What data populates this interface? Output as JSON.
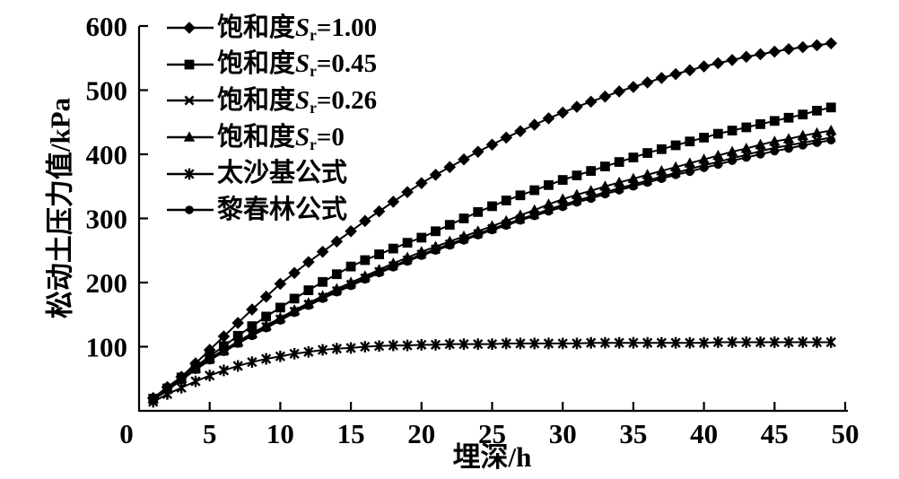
{
  "figure": {
    "background_color": "#ffffff",
    "ink_color": "#000000"
  },
  "chart_data": {
    "type": "line",
    "title": "",
    "xlabel": "埋深/h",
    "ylabel": "松动土压力值/kPa",
    "xlim": [
      0,
      50
    ],
    "ylim": [
      0,
      600
    ],
    "x_ticks": [
      0,
      5,
      10,
      15,
      20,
      25,
      30,
      35,
      40,
      45,
      50
    ],
    "y_ticks": [
      100,
      200,
      300,
      400,
      500,
      600
    ],
    "grid": false,
    "legend_position": "top-left-inside",
    "x": [
      1,
      2,
      3,
      4,
      5,
      6,
      7,
      8,
      9,
      10,
      11,
      12,
      13,
      14,
      15,
      16,
      17,
      18,
      19,
      20,
      21,
      22,
      23,
      24,
      25,
      26,
      27,
      28,
      29,
      30,
      31,
      32,
      33,
      34,
      35,
      36,
      37,
      38,
      39,
      40,
      41,
      42,
      43,
      44,
      45,
      46,
      47,
      48,
      49
    ],
    "series": [
      {
        "name": "饱和度Sr=1.00",
        "marker": "diamond",
        "label": {
          "prefix": "饱和度",
          "sym": "S",
          "sub": "r",
          "suffix": "=1.00"
        },
        "values": [
          20,
          37,
          53,
          74,
          95,
          116,
          137,
          158,
          178,
          198,
          215,
          232,
          248,
          264,
          280,
          296,
          311,
          326,
          341,
          355,
          368,
          380,
          392,
          404,
          415,
          426,
          436,
          446,
          456,
          465,
          474,
          482,
          490,
          498,
          505,
          512,
          519,
          525,
          531,
          537,
          542,
          547,
          552,
          556,
          560,
          564,
          567,
          570,
          573
        ]
      },
      {
        "name": "饱和度Sr=0.45",
        "marker": "square",
        "label": {
          "prefix": "饱和度",
          "sym": "S",
          "sub": "r",
          "suffix": "=0.45"
        },
        "values": [
          19,
          35,
          52,
          69,
          85,
          101,
          117,
          132,
          147,
          161,
          175,
          188,
          201,
          213,
          225,
          235,
          244,
          253,
          262,
          270,
          280,
          290,
          300,
          310,
          319,
          328,
          336,
          344,
          352,
          360,
          367,
          374,
          381,
          388,
          395,
          402,
          408,
          414,
          420,
          426,
          432,
          437,
          442,
          447,
          452,
          457,
          462,
          468,
          473
        ]
      },
      {
        "name": "饱和度Sr=0.26",
        "marker": "cross",
        "label": {
          "prefix": "饱和度",
          "sym": "S",
          "sub": "r",
          "suffix": "=0.26"
        },
        "values": [
          18,
          33,
          49,
          65,
          80,
          93,
          106,
          119,
          131,
          143,
          155,
          166,
          177,
          187,
          197,
          207,
          217,
          226,
          235,
          244,
          252,
          260,
          268,
          276,
          284,
          291,
          299,
          306,
          314,
          321,
          328,
          334,
          341,
          347,
          353,
          359,
          365,
          371,
          377,
          383,
          388,
          394,
          399,
          405,
          410,
          414,
          418,
          422,
          426
        ]
      },
      {
        "name": "饱和度Sr=0",
        "marker": "triangle",
        "label": {
          "prefix": "饱和度",
          "sym": "S",
          "sub": "r",
          "suffix": "=0"
        },
        "values": [
          18,
          34,
          50,
          66,
          82,
          95,
          108,
          121,
          133,
          145,
          157,
          168,
          179,
          190,
          200,
          210,
          220,
          230,
          239,
          248,
          256,
          264,
          272,
          280,
          288,
          296,
          305,
          313,
          322,
          330,
          337,
          343,
          350,
          356,
          362,
          368,
          374,
          380,
          386,
          392,
          398,
          404,
          409,
          415,
          420,
          424,
          429,
          433,
          437
        ]
      },
      {
        "name": "太沙基公式",
        "marker": "asterisk",
        "label": {
          "prefix": "太沙基公式",
          "sym": "",
          "sub": "",
          "suffix": ""
        },
        "values": [
          14,
          26,
          36,
          46,
          55,
          63,
          70,
          76,
          81,
          85,
          89,
          92,
          95,
          97,
          98,
          100,
          101,
          102,
          102,
          103,
          103,
          104,
          104,
          104,
          104,
          105,
          105,
          105,
          105,
          105,
          105,
          106,
          106,
          106,
          106,
          106,
          106,
          106,
          106,
          106,
          107,
          107,
          107,
          107,
          107,
          107,
          107,
          107,
          107
        ]
      },
      {
        "name": "黎春林公式",
        "marker": "circle",
        "label": {
          "prefix": "黎春林公式",
          "sym": "",
          "sub": "",
          "suffix": ""
        },
        "values": [
          17,
          32,
          48,
          64,
          79,
          92,
          105,
          117,
          129,
          141,
          153,
          164,
          175,
          185,
          195,
          205,
          215,
          224,
          233,
          242,
          250,
          258,
          266,
          274,
          282,
          289,
          297,
          304,
          311,
          318,
          325,
          331,
          338,
          344,
          350,
          356,
          362,
          368,
          373,
          379,
          384,
          390,
          395,
          400,
          405,
          409,
          414,
          418,
          422
        ]
      }
    ]
  }
}
